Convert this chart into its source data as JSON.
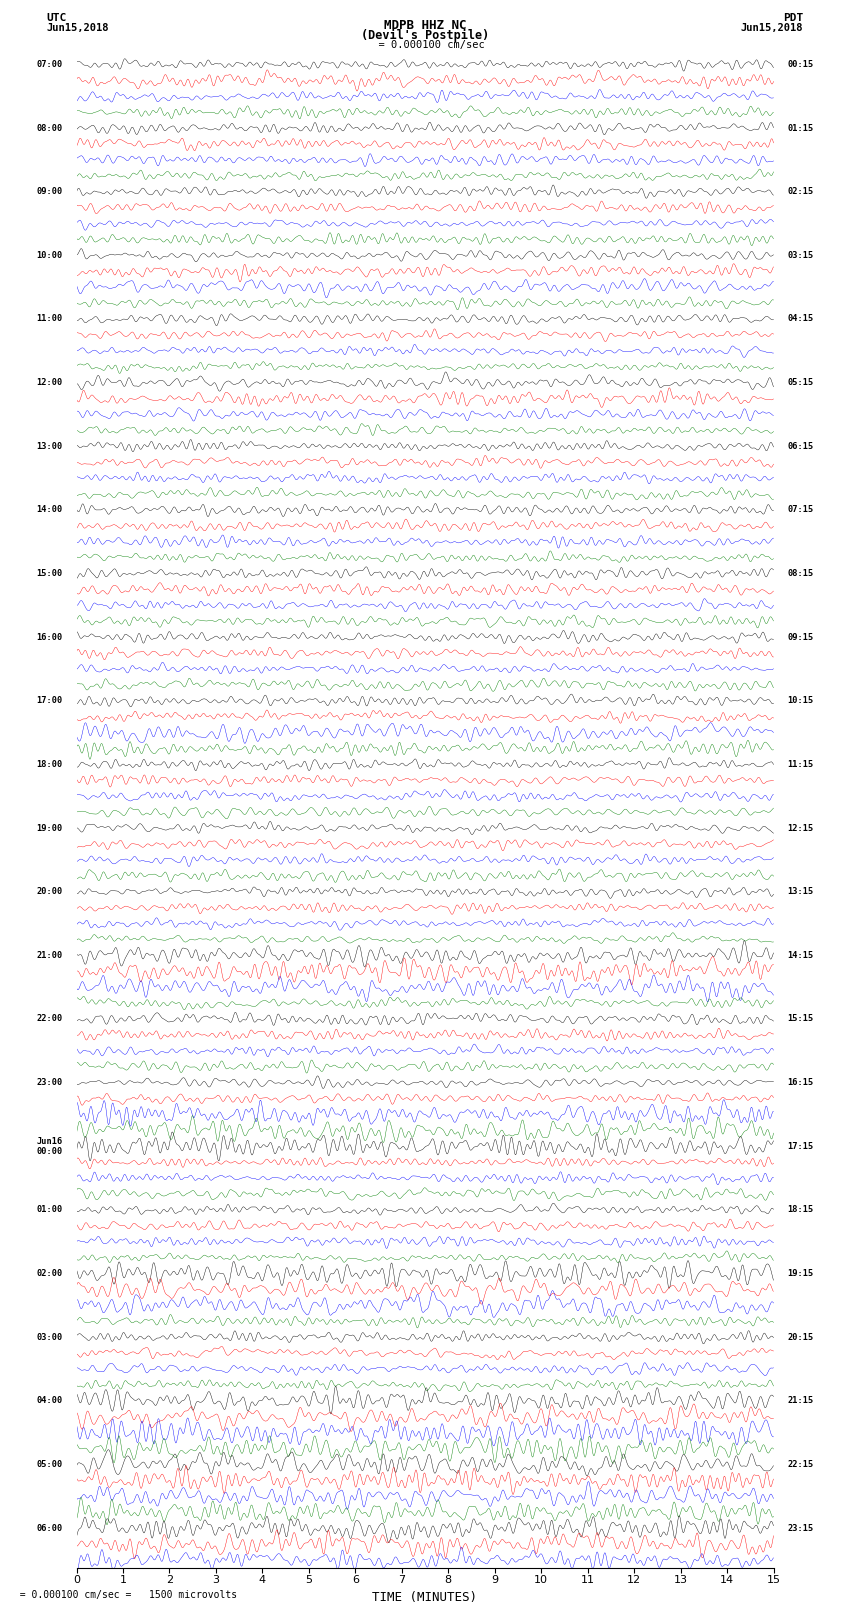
{
  "title_line1": "MDPB HHZ NC",
  "title_line2": "(Devil's Postpile)",
  "scale_text": "= 0.000100 cm/sec",
  "scale_caption": "= 0.000100 cm/sec =   1500 microvolts",
  "utc_label": "UTC",
  "utc_date": "Jun15,2018",
  "pdt_label": "PDT",
  "pdt_date": "Jun15,2018",
  "xlabel": "TIME (MINUTES)",
  "xlim": [
    0,
    15
  ],
  "xticks": [
    0,
    1,
    2,
    3,
    4,
    5,
    6,
    7,
    8,
    9,
    10,
    11,
    12,
    13,
    14,
    15
  ],
  "colors": [
    "black",
    "red",
    "blue",
    "green"
  ],
  "figwidth": 8.5,
  "figheight": 16.13,
  "bg_color": "white",
  "left_times_utc": [
    "07:00",
    "",
    "",
    "",
    "08:00",
    "",
    "",
    "",
    "09:00",
    "",
    "",
    "",
    "10:00",
    "",
    "",
    "",
    "11:00",
    "",
    "",
    "",
    "12:00",
    "",
    "",
    "",
    "13:00",
    "",
    "",
    "",
    "14:00",
    "",
    "",
    "",
    "15:00",
    "",
    "",
    "",
    "16:00",
    "",
    "",
    "",
    "17:00",
    "",
    "",
    "",
    "18:00",
    "",
    "",
    "",
    "19:00",
    "",
    "",
    "",
    "20:00",
    "",
    "",
    "",
    "21:00",
    "",
    "",
    "",
    "22:00",
    "",
    "",
    "",
    "23:00",
    "",
    "",
    "",
    "Jun16\n00:00",
    "",
    "",
    "",
    "01:00",
    "",
    "",
    "",
    "02:00",
    "",
    "",
    "",
    "03:00",
    "",
    "",
    "",
    "04:00",
    "",
    "",
    "",
    "05:00",
    "",
    "",
    "",
    "06:00",
    "",
    ""
  ],
  "right_times_pdt": [
    "00:15",
    "",
    "",
    "",
    "01:15",
    "",
    "",
    "",
    "02:15",
    "",
    "",
    "",
    "03:15",
    "",
    "",
    "",
    "04:15",
    "",
    "",
    "",
    "05:15",
    "",
    "",
    "",
    "06:15",
    "",
    "",
    "",
    "07:15",
    "",
    "",
    "",
    "08:15",
    "",
    "",
    "",
    "09:15",
    "",
    "",
    "",
    "10:15",
    "",
    "",
    "",
    "11:15",
    "",
    "",
    "",
    "12:15",
    "",
    "",
    "",
    "13:15",
    "",
    "",
    "",
    "14:15",
    "",
    "",
    "",
    "15:15",
    "",
    "",
    "",
    "16:15",
    "",
    "",
    "",
    "17:15",
    "",
    "",
    "",
    "18:15",
    "",
    "",
    "",
    "19:15",
    "",
    "",
    "",
    "20:15",
    "",
    "",
    "",
    "21:15",
    "",
    "",
    "",
    "22:15",
    "",
    "",
    "",
    "23:15",
    "",
    ""
  ],
  "num_rows": 95,
  "seed": 42
}
